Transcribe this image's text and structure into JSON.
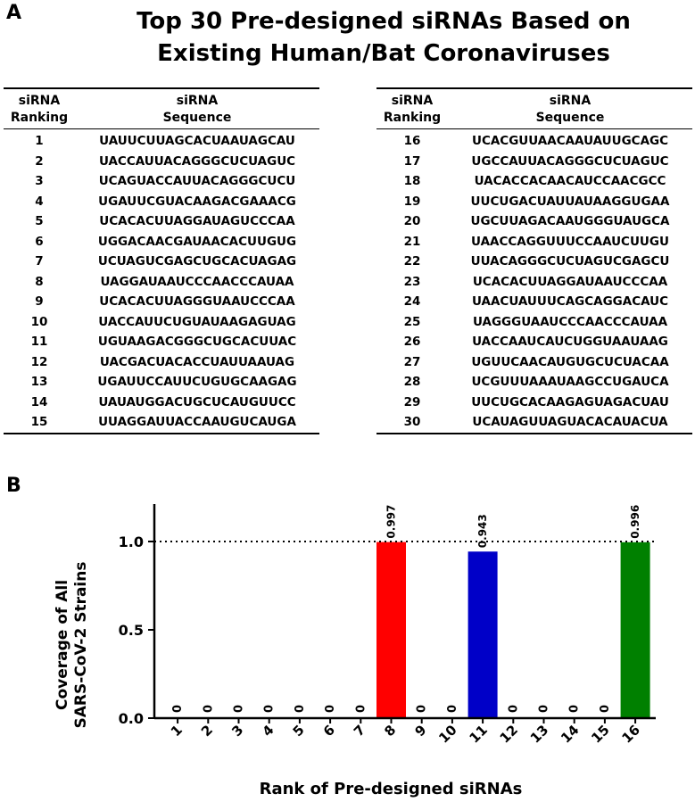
{
  "panel_a_label": "A",
  "panel_b_label": "B",
  "title_line1": "Top 30 Pre-designed siRNAs Based on",
  "title_line2": "Existing Human/Bat Coronaviruses",
  "table_header": {
    "rank_line1": "siRNA",
    "rank_line2": "Ranking",
    "seq_line1": "siRNA",
    "seq_line2": "Sequence"
  },
  "table_left": [
    {
      "rank": "1",
      "seq": "UAUUCUUAGCACUAAUAGCAU"
    },
    {
      "rank": "2",
      "seq": "UACCAUUACAGGGCUCUAGUC"
    },
    {
      "rank": "3",
      "seq": "UCAGUACCAUUACAGGGCUCU"
    },
    {
      "rank": "4",
      "seq": "UGAUUCGUACAAGACGAAACG"
    },
    {
      "rank": "5",
      "seq": "UCACACUUAGGAUAGUCCCAA"
    },
    {
      "rank": "6",
      "seq": "UGGACAACGAUAACACUUGUG"
    },
    {
      "rank": "7",
      "seq": "UCUAGUCGAGCUGCACUAGAG"
    },
    {
      "rank": "8",
      "seq": "UAGGAUAAUCCCAACCCAUAA"
    },
    {
      "rank": "9",
      "seq": "UCACACUUAGGGUAAUCCCAA"
    },
    {
      "rank": "10",
      "seq": "UACCAUUCUGUAUAAGAGUAG"
    },
    {
      "rank": "11",
      "seq": "UGUAAGACGGGCUGCACUUAC"
    },
    {
      "rank": "12",
      "seq": "UACGACUACACCUAUUAAUAG"
    },
    {
      "rank": "13",
      "seq": "UGAUUCCAUUCUGUGCAAGAG"
    },
    {
      "rank": "14",
      "seq": "UAUAUGGACUGCUCAUGUUCC"
    },
    {
      "rank": "15",
      "seq": "UUAGGAUUACCAAUGUCAUGA"
    }
  ],
  "table_right": [
    {
      "rank": "16",
      "seq": "UCACGUUAACAAUAUUGCAGC"
    },
    {
      "rank": "17",
      "seq": "UGCCAUUACAGGGCUCUAGUC"
    },
    {
      "rank": "18",
      "seq": "UACACCACAACAUCCAACGCC"
    },
    {
      "rank": "19",
      "seq": "UUCUGACUAUUAUAAGGUGAA"
    },
    {
      "rank": "20",
      "seq": "UGCUUAGACAAUGGGUAUGCA"
    },
    {
      "rank": "21",
      "seq": "UAACCAGGUUUCCAAUCUUGU"
    },
    {
      "rank": "22",
      "seq": "UUACAGGGCUCUAGUCGAGCU"
    },
    {
      "rank": "23",
      "seq": "UCACACUUAGGAUAAUCCCAA"
    },
    {
      "rank": "24",
      "seq": "UAACUAUUUCAGCAGGACAUC"
    },
    {
      "rank": "25",
      "seq": "UAGGGUAAUCCCAACCCAUAA"
    },
    {
      "rank": "26",
      "seq": "UACCAAUCAUCUGGUAAUAAG"
    },
    {
      "rank": "27",
      "seq": "UGUUCAACAUGUGCUCUACAA"
    },
    {
      "rank": "28",
      "seq": "UCGUUUAAAUAAGCCUGAUCA"
    },
    {
      "rank": "29",
      "seq": "UUCUGCACAAGAGUAGACUAU"
    },
    {
      "rank": "30",
      "seq": "UCAUAGUUAGUACACAUACUA"
    }
  ],
  "chart_data": {
    "type": "bar",
    "categories": [
      "1",
      "2",
      "3",
      "4",
      "5",
      "6",
      "7",
      "8",
      "9",
      "10",
      "11",
      "12",
      "13",
      "14",
      "15",
      "16"
    ],
    "values": [
      0,
      0,
      0,
      0,
      0,
      0,
      0,
      0.997,
      0,
      0,
      0.943,
      0,
      0,
      0,
      0,
      0.996
    ],
    "value_labels": [
      "0",
      "0",
      "0",
      "0",
      "0",
      "0",
      "0",
      "0.997",
      "0",
      "0",
      "0.943",
      "0",
      "0",
      "0",
      "0",
      "0.996"
    ],
    "bar_colors": [
      "#ffffff",
      "#ffffff",
      "#ffffff",
      "#ffffff",
      "#ffffff",
      "#ffffff",
      "#ffffff",
      "#ff0000",
      "#ffffff",
      "#ffffff",
      "#0000c8",
      "#ffffff",
      "#ffffff",
      "#ffffff",
      "#ffffff",
      "#008000"
    ],
    "xlabel": "Rank of Pre-designed siRNAs",
    "ylabel_line1": "Coverage of All",
    "ylabel_line2": "SARS-CoV-2 Strains",
    "ylim": [
      0,
      1.0
    ],
    "yticks": [
      "0.0",
      "0.5",
      "1.0"
    ],
    "reference_line": 1.0,
    "grid": false
  }
}
